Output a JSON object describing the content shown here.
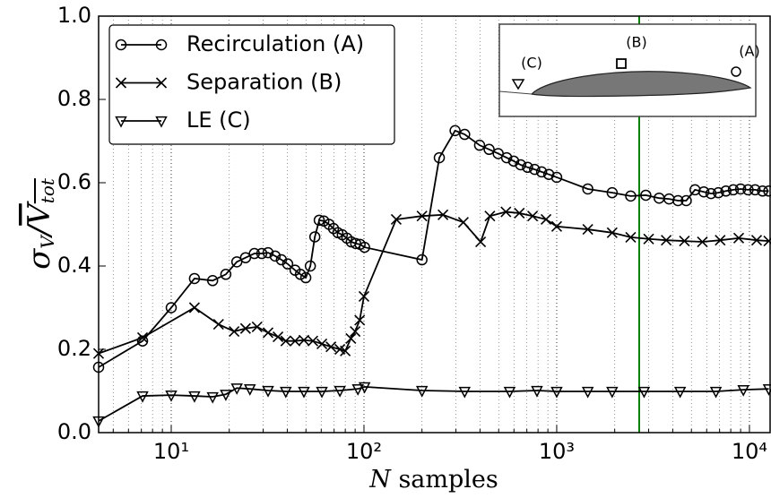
{
  "chart_data": {
    "type": "line",
    "xscale": "log",
    "grid": "x",
    "legend": "upper left",
    "xlabel": [
      "N",
      " samples"
    ],
    "ylabel": [
      "σ",
      "V",
      "/",
      "V",
      "tot"
    ],
    "xlim": [
      4.2,
      12800
    ],
    "ylim": [
      0,
      1
    ],
    "xticks": [
      {
        "value": 10,
        "label": "10¹"
      },
      {
        "value": 100,
        "label": "10²"
      },
      {
        "value": 1000,
        "label": "10³"
      },
      {
        "value": 10000,
        "label": "10⁴"
      }
    ],
    "xminorticks": [
      5,
      6,
      7,
      8,
      9,
      20,
      30,
      40,
      50,
      60,
      70,
      80,
      90,
      200,
      300,
      400,
      500,
      600,
      700,
      800,
      900,
      2000,
      3000,
      4000,
      5000,
      6000,
      7000,
      8000,
      9000
    ],
    "yticks": [
      {
        "value": 0,
        "label": "0.0"
      },
      0.2,
      0.4,
      0.6,
      0.8,
      {
        "value": 1,
        "label": "1.0"
      }
    ],
    "vline": {
      "x": 2680,
      "color": "#008000"
    },
    "series": [
      {
        "name": "Recirculation (A)",
        "color": "#000000",
        "marker": "circle",
        "x": [
          4.2,
          7.1,
          10,
          13.2,
          16.4,
          19.2,
          21.9,
          24.3,
          27,
          29.5,
          31.8,
          34.6,
          37.3,
          40.2,
          43.9,
          46.8,
          49.9,
          52.7,
          55.6,
          58.6,
          61.9,
          65.9,
          69.5,
          73.2,
          77.2,
          81.5,
          85.9,
          90.6,
          95.5,
          100.7,
          200,
          246,
          297,
          333,
          398,
          446,
          497,
          550,
          598,
          650,
          706,
          768,
          835,
          910,
          1000,
          1450,
          1940,
          2420,
          2900,
          3400,
          3830,
          4260,
          4700,
          5220,
          5800,
          6320,
          6900,
          7550,
          8250,
          9000,
          9840,
          10700,
          11700,
          12600
        ],
        "values": [
          0.157,
          0.22,
          0.3,
          0.37,
          0.365,
          0.38,
          0.41,
          0.42,
          0.43,
          0.43,
          0.432,
          0.424,
          0.415,
          0.405,
          0.39,
          0.38,
          0.372,
          0.4,
          0.47,
          0.51,
          0.508,
          0.5,
          0.49,
          0.48,
          0.475,
          0.467,
          0.458,
          0.454,
          0.452,
          0.445,
          0.415,
          0.66,
          0.725,
          0.716,
          0.69,
          0.68,
          0.67,
          0.66,
          0.652,
          0.643,
          0.637,
          0.632,
          0.626,
          0.62,
          0.613,
          0.585,
          0.576,
          0.568,
          0.57,
          0.563,
          0.561,
          0.557,
          0.557,
          0.583,
          0.578,
          0.574,
          0.576,
          0.58,
          0.583,
          0.585,
          0.583,
          0.583,
          0.58,
          0.58
        ]
      },
      {
        "name": "Separation (B)",
        "color": "#000000",
        "marker": "x",
        "x": [
          4.2,
          7.1,
          13.2,
          17.6,
          21.2,
          24.3,
          27.9,
          31.8,
          35.8,
          39.3,
          43.9,
          48.8,
          54.3,
          60.5,
          67.4,
          75,
          80,
          85.5,
          90,
          95,
          100,
          147,
          200,
          257,
          328,
          403,
          450,
          545,
          640,
          750,
          880,
          1000,
          1450,
          1940,
          2420,
          3000,
          3700,
          4600,
          5700,
          7050,
          8800,
          10900,
          12600
        ],
        "values": [
          0.19,
          0.228,
          0.3,
          0.26,
          0.243,
          0.25,
          0.254,
          0.24,
          0.23,
          0.22,
          0.22,
          0.222,
          0.22,
          0.213,
          0.206,
          0.2,
          0.196,
          0.226,
          0.243,
          0.27,
          0.327,
          0.512,
          0.52,
          0.523,
          0.505,
          0.458,
          0.52,
          0.53,
          0.527,
          0.52,
          0.512,
          0.495,
          0.488,
          0.48,
          0.469,
          0.465,
          0.462,
          0.46,
          0.458,
          0.462,
          0.467,
          0.462,
          0.46
        ]
      },
      {
        "name": "LE (C)",
        "color": "#000000",
        "marker": "triangle-down",
        "x": [
          4.2,
          7.1,
          10,
          13.2,
          16.4,
          19.2,
          21.9,
          25.6,
          31.8,
          39.3,
          48.8,
          60.5,
          75,
          93,
          100.7,
          200,
          333,
          570,
          790,
          1000,
          1450,
          1940,
          2840,
          4370,
          6700,
          9300,
          12600
        ],
        "values": [
          0.028,
          0.088,
          0.09,
          0.088,
          0.086,
          0.092,
          0.107,
          0.105,
          0.101,
          0.099,
          0.099,
          0.099,
          0.101,
          0.105,
          0.11,
          0.101,
          0.099,
          0.099,
          0.101,
          0.099,
          0.099,
          0.099,
          0.099,
          0.099,
          0.099,
          0.103,
          0.105
        ]
      }
    ],
    "inset": {
      "labels": [
        "(A)",
        "(B)",
        "(C)"
      ]
    }
  }
}
